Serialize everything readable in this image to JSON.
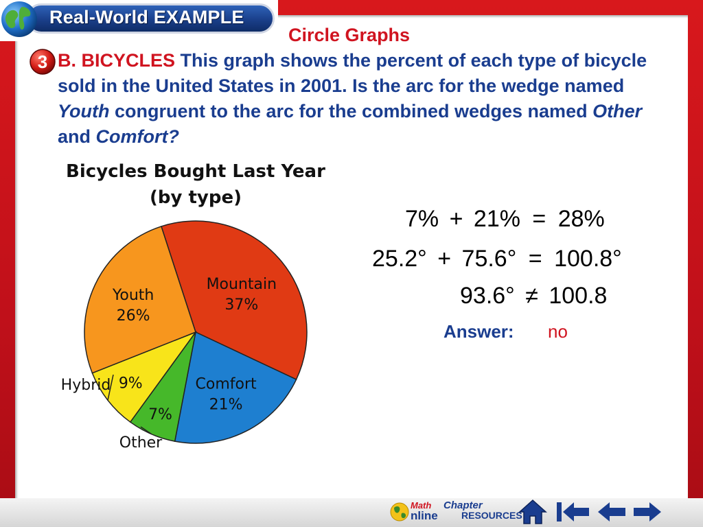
{
  "header": {
    "badge_label": "Real-World EXAMPLE",
    "step_number": "3"
  },
  "slide_title": "Circle Graphs",
  "problem": {
    "lead": "B. BICYCLES",
    "text1": " This graph shows the percent of each type of bicycle sold in the United States in 2001. Is the arc for the wedge named ",
    "youth": "Youth",
    "text2": " congruent to the arc for the combined wedges named ",
    "other": "Other",
    "text3": " and ",
    "comfort": "Comfort",
    "text4": "?"
  },
  "chart_data": {
    "type": "pie",
    "title": "Bicycles Bought Last Year",
    "subtitle": "(by type)",
    "slices": [
      {
        "name": "Mountain",
        "value": 37,
        "label": "37%",
        "color": "#e03a14"
      },
      {
        "name": "Comfort",
        "value": 21,
        "label": "21%",
        "color": "#1e7fd0"
      },
      {
        "name": "Other",
        "value": 7,
        "label": "7%",
        "color": "#46b82a"
      },
      {
        "name": "Hybrid",
        "value": 9,
        "label": "9%",
        "color": "#f8e41a"
      },
      {
        "name": "Youth",
        "value": 26,
        "label": "26%",
        "color": "#f7961e"
      }
    ]
  },
  "math": {
    "line1": {
      "a": "7%",
      "op": "+",
      "b": "21%",
      "eq": "=",
      "c": "28%"
    },
    "line2": {
      "a": "25.2°",
      "op": "+",
      "b": "75.6°",
      "eq": "=",
      "c": "100.8°"
    },
    "line3": {
      "a": "93.6°",
      "op": "≠",
      "b": "100.8"
    }
  },
  "answer": {
    "label": "Answer:",
    "value": "no"
  },
  "nav": {
    "math_label": "Math",
    "online_label": "nline",
    "chapter_label": "Chapter",
    "resources_label": "RESOURCES",
    "home_icon": "home-icon",
    "first_icon": "first-slide-icon",
    "prev_icon": "previous-slide-icon",
    "next_icon": "next-slide-icon"
  }
}
